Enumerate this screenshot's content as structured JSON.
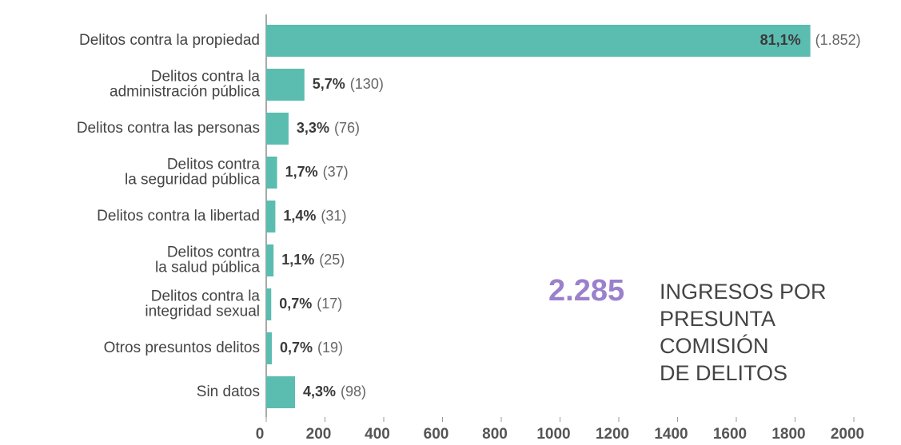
{
  "chart_data": {
    "type": "hbar",
    "categories": [
      "Delitos contra la propiedad",
      "Delitos contra la\nadministración pública",
      "Delitos contra las personas",
      "Delitos contra\nla seguridad pública",
      "Delitos contra la libertad",
      "Delitos contra\nla salud pública",
      "Delitos contra la\nintegridad sexual",
      "Otros presuntos delitos",
      "Sin datos"
    ],
    "values": [
      1852,
      130,
      76,
      37,
      31,
      25,
      17,
      19,
      98
    ],
    "value_labels": [
      "(1.852)",
      "(130)",
      "(76)",
      "(37)",
      "(31)",
      "(25)",
      "(17)",
      "(19)",
      "(98)"
    ],
    "percent_labels": [
      "81,1%",
      "5,7%",
      "3,3%",
      "1,7%",
      "1,4%",
      "1,1%",
      "0,7%",
      "0,7%",
      "4,3%"
    ],
    "color": "#5bbcb0",
    "xlim": [
      0,
      2000
    ],
    "xticks": [
      0,
      200,
      400,
      600,
      800,
      1000,
      1200,
      1400,
      1600,
      1800,
      2000
    ],
    "annotation": {
      "number": "2.285",
      "text": "INGRESOS POR\nPRESUNTA\nCOMISIÓN\nDE DELITOS"
    }
  }
}
